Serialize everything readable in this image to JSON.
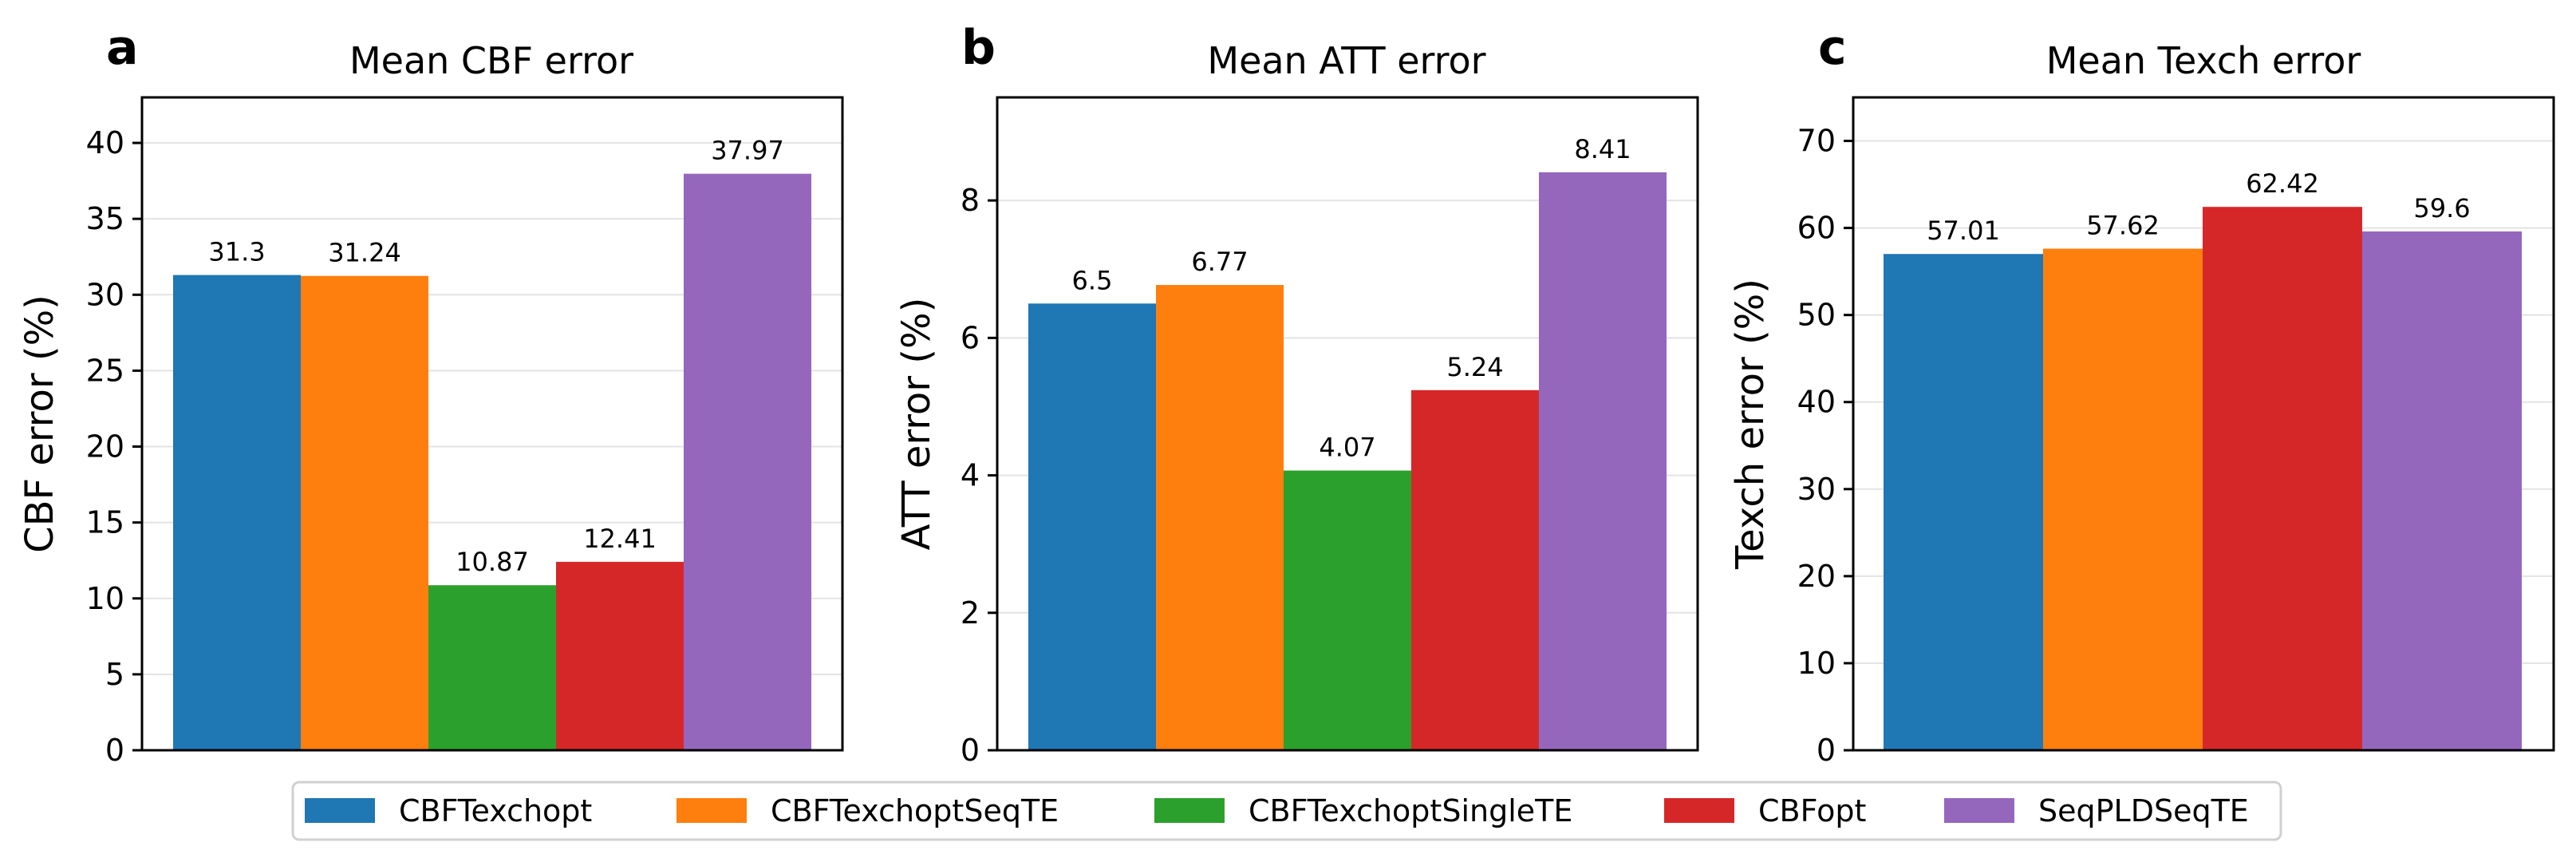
{
  "chart_data": [
    {
      "type": "bar",
      "panel": "a",
      "title": "Mean CBF error",
      "xlabel": "",
      "ylabel": "CBF error (%)",
      "ylim": [
        0,
        43
      ],
      "yticks": [
        0,
        5,
        10,
        15,
        20,
        25,
        30,
        35,
        40
      ],
      "grid": "y",
      "categories": [
        "CBFTexchopt",
        "CBFTexchoptSeqTE",
        "CBFTexchoptSingleTE",
        "CBFopt",
        "SeqPLDSeqTE"
      ],
      "values": [
        31.3,
        31.24,
        10.87,
        12.41,
        37.97
      ],
      "data_labels": [
        "31.3",
        "31.24",
        "10.87",
        "12.41",
        "37.97"
      ]
    },
    {
      "type": "bar",
      "panel": "b",
      "title": "Mean ATT error",
      "xlabel": "",
      "ylabel": "ATT error (%)",
      "ylim": [
        0,
        9.5
      ],
      "yticks": [
        0,
        2,
        4,
        6,
        8
      ],
      "grid": "y",
      "categories": [
        "CBFTexchopt",
        "CBFTexchoptSeqTE",
        "CBFTexchoptSingleTE",
        "CBFopt",
        "SeqPLDSeqTE"
      ],
      "values": [
        6.5,
        6.77,
        4.07,
        5.24,
        8.41
      ],
      "data_labels": [
        "6.5",
        "6.77",
        "4.07",
        "5.24",
        "8.41"
      ]
    },
    {
      "type": "bar",
      "panel": "c",
      "title": "Mean Texch error",
      "xlabel": "",
      "ylabel": "Texch error (%)",
      "ylim": [
        0,
        75
      ],
      "yticks": [
        0,
        10,
        20,
        30,
        40,
        50,
        60,
        70
      ],
      "grid": "y",
      "categories": [
        "CBFTexchopt",
        "CBFTexchoptSeqTE",
        "CBFopt",
        "SeqPLDSeqTE"
      ],
      "values": [
        57.01,
        57.62,
        62.42,
        59.6
      ],
      "data_labels": [
        "57.01",
        "57.62",
        "62.42",
        "59.6"
      ]
    }
  ],
  "legend": {
    "placement": "bottom-center",
    "entries": [
      {
        "label": "CBFTexchopt",
        "color": "#1f77b4"
      },
      {
        "label": "CBFTexchoptSeqTE",
        "color": "#ff7f0e"
      },
      {
        "label": "CBFTexchoptSingleTE",
        "color": "#2ca02c"
      },
      {
        "label": "CBFopt",
        "color": "#d62728"
      },
      {
        "label": "SeqPLDSeqTE",
        "color": "#9467bd"
      }
    ]
  }
}
